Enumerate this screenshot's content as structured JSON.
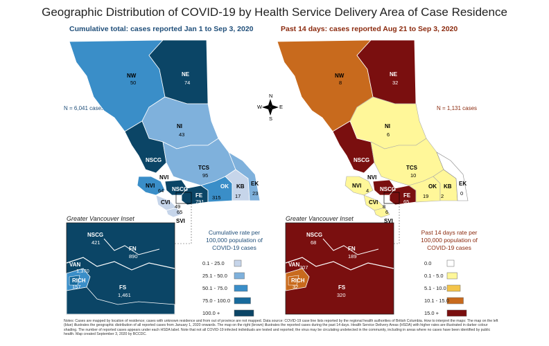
{
  "title": "Geographic Distribution of COVID-19 by Health Service Delivery Area of Case Residence",
  "left_panel": {
    "subtitle": "Cumulative total: cases reported Jan 1 to Sep 3, 2020",
    "n_cases": "N = 6,041 cases",
    "inset_title": "Greater Vancouver Inset",
    "legend_title": "Cumulative rate per 100,000 population of COVID-19 cases",
    "legend": [
      {
        "label": "0.1 - 25.0",
        "color": "#c6d5ea"
      },
      {
        "label": "25.1 - 50.0",
        "color": "#7fb1dc"
      },
      {
        "label": "50.1 - 75.0",
        "color": "#3a8ec8"
      },
      {
        "label": "75.0 - 100.0",
        "color": "#186a9c"
      },
      {
        "label": "100.0 +",
        "color": "#0b4566"
      }
    ],
    "regions": {
      "NW": "50",
      "NE": "74",
      "NI": "43",
      "NSCG": "",
      "TCS": "95",
      "NVI": "64",
      "NSCG2": "",
      "FE": "791",
      "OK": "315",
      "KB": "17",
      "EK": "23",
      "CVI": "49",
      "SVI": "65"
    },
    "inset": {
      "NSCG": "421",
      "FN": "890",
      "VAN": "1,370",
      "RICH": "157",
      "FS": "1,461"
    }
  },
  "right_panel": {
    "subtitle": "Past 14 days: cases reported Aug 21 to Sep 3, 2020",
    "n_cases": "N = 1,131 cases",
    "inset_title": "Greater Vancouver Inset",
    "legend_title": "Past 14 days rate per 100,000 population of COVID-19 cases",
    "legend": [
      {
        "label": "0.0",
        "color": "#ffffff"
      },
      {
        "label": "0.1 - 5.0",
        "color": "#fff799"
      },
      {
        "label": "5.1 - 10.0",
        "color": "#f3c44a"
      },
      {
        "label": "10.1 - 15.0",
        "color": "#c86a1d"
      },
      {
        "label": "15.0 +",
        "color": "#7a0f0f"
      }
    ],
    "regions": {
      "NW": "8",
      "NE": "32",
      "NI": "6",
      "TCS": "10",
      "NVI": "4",
      "FE": "65",
      "OK": "19",
      "KB": "2",
      "EK": "0",
      "CVI": "8",
      "SVI": "6"
    },
    "inset": {
      "NSCG": "68",
      "FN": "189",
      "VAN": "307",
      "RICH": "32",
      "FS": "320"
    }
  },
  "region_names": {
    "NW": "NW",
    "NE": "NE",
    "NI": "NI",
    "NSCG": "NSCG",
    "TCS": "TCS",
    "NVI": "NVI",
    "FE": "FE",
    "OK": "OK",
    "KB": "KB",
    "EK": "EK",
    "CVI": "CVI",
    "SVI": "SVI",
    "FN": "FN",
    "VAN": "VAN",
    "RICH": "RICH",
    "FS": "FS"
  },
  "compass": {
    "n": "N",
    "s": "S",
    "e": "E",
    "w": "W"
  },
  "notes": "Notes: Cases are mapped by location of residence; cases with unknown residence and from out of province are not mapped. Data source: COVID-19 case line lists reported by the regional health authorities of British Columbia. How to interpret the maps: The map on the left (blue) illustrates the geographic distribution of all reported cases from January 1, 2020 onwards. The map on the right (brown) illustrates the reported cases during the past 14 days. Health Service Delivery Areas (HSDA) with higher rates are illustrated in darker colour shading. The number of reported cases appears under each HSDA label. Note that not all COVID-19 infected individuals are tested and reported; the virus may be circulating undetected in the community, including in areas where no cases have been identified by public health. Map created September 3, 2020 by BCCDC."
}
